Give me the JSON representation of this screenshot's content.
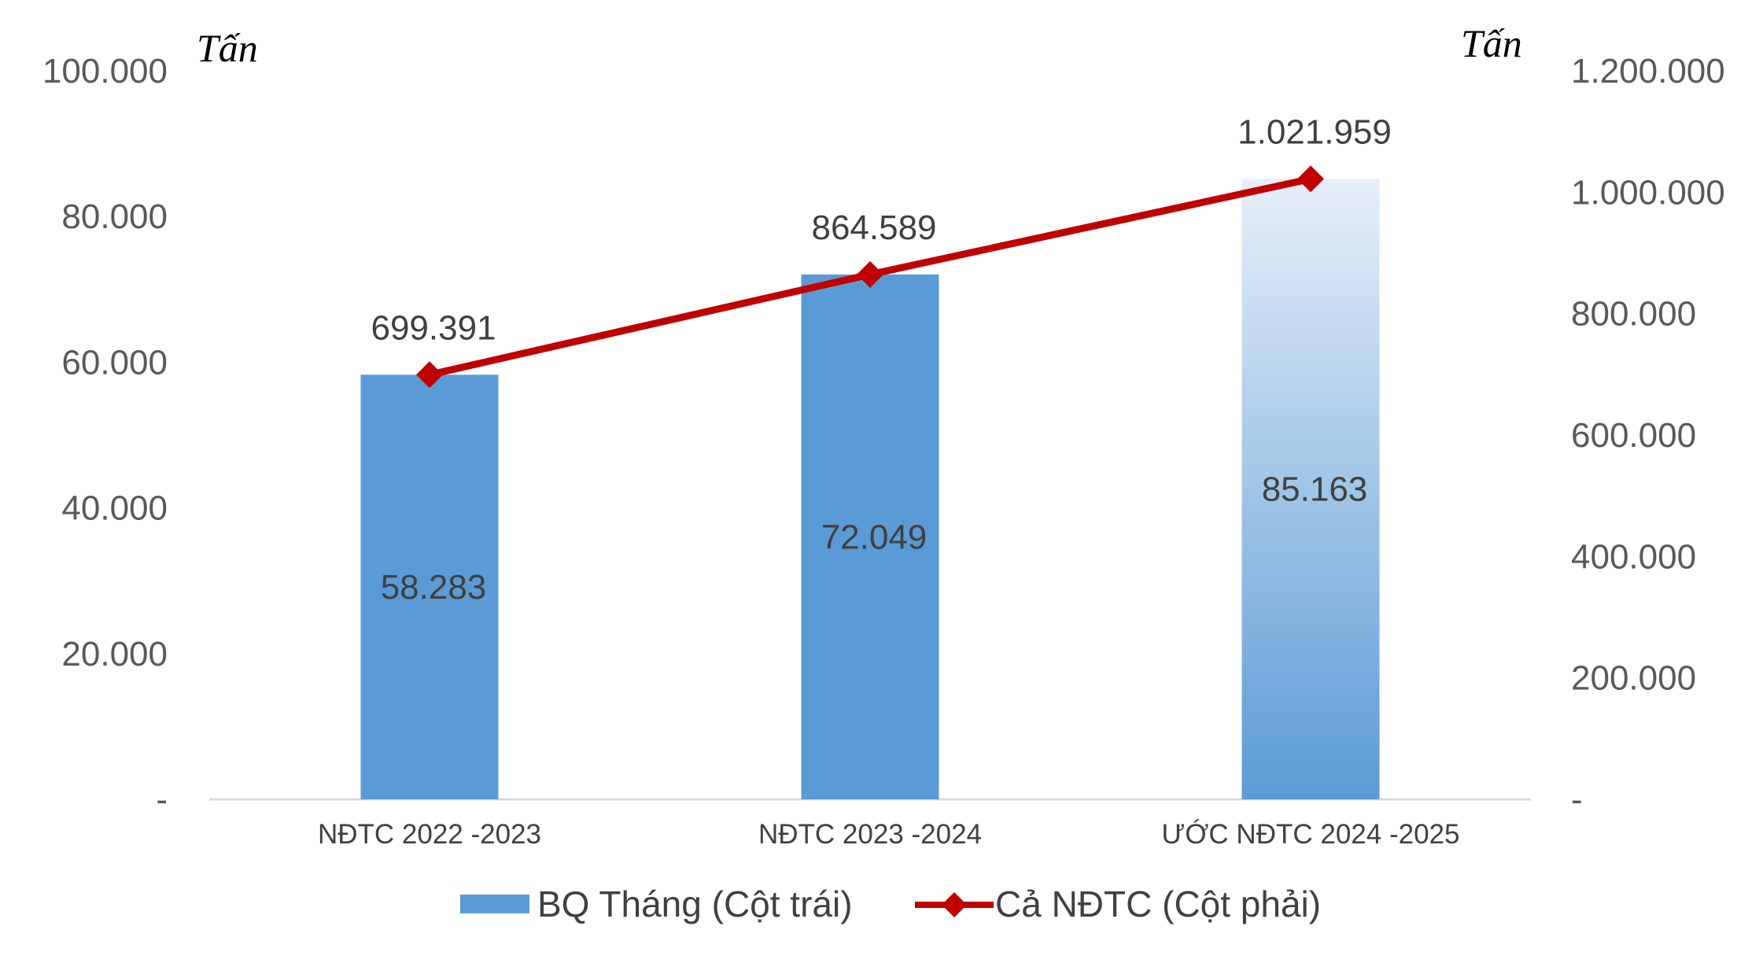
{
  "chart_data": {
    "type": "bar+line",
    "categories": [
      "NĐTC 2022 -2023",
      "NĐTC 2023 -2024",
      "ƯỚC NĐTC 2024 -2025"
    ],
    "series": [
      {
        "name": "BQ Tháng (Cột trái)",
        "type": "bar",
        "axis": "left",
        "values": [
          58283,
          72049,
          85163
        ],
        "labels": [
          "58.283",
          "72.049",
          "85.163"
        ],
        "color": "#5B9BD5"
      },
      {
        "name": "Cả NĐTC (Cột phải)",
        "type": "line",
        "axis": "right",
        "values": [
          699391,
          864589,
          1021959
        ],
        "labels": [
          "699.391",
          "864.589",
          "1.021.959"
        ],
        "color": "#C00000"
      }
    ],
    "left_axis": {
      "unit": "Tấn",
      "ylim": [
        0,
        100000
      ],
      "ticks": [
        0,
        20000,
        40000,
        60000,
        80000,
        100000
      ],
      "tick_labels": [
        "-",
        "20.000",
        "40.000",
        "60.000",
        "80.000",
        "100.000"
      ]
    },
    "right_axis": {
      "unit": "Tấn",
      "ylim": [
        0,
        1200000
      ],
      "ticks": [
        0,
        200000,
        400000,
        600000,
        800000,
        1000000,
        1200000
      ],
      "tick_labels": [
        "-",
        "200.000",
        "400.000",
        "600.000",
        "800.000",
        "1.000.000",
        "1.200.000"
      ]
    },
    "legend": "bottom",
    "grid": false,
    "last_bar_gradient": true,
    "gradient_top_color": "#E6EFF9"
  }
}
